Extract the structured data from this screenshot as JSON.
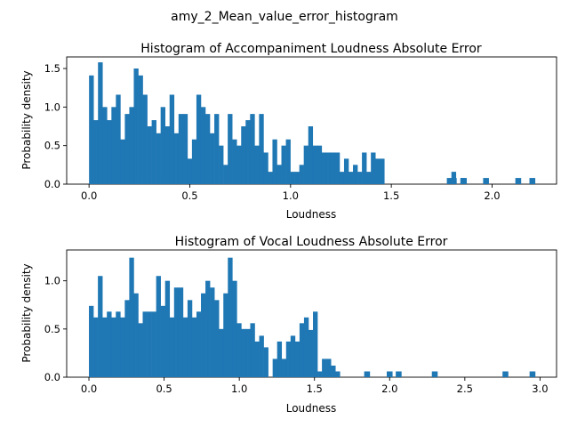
{
  "suptitle": "amy_2_Mean_value_error_histogram",
  "chart_data": [
    {
      "type": "bar",
      "title": "Histogram of Accompaniment Loudness Absolute Error",
      "xlabel": "Loudness",
      "ylabel": "Probability density",
      "xlim": [
        -0.111,
        2.32
      ],
      "ylim": [
        0,
        1.65
      ],
      "xticks": [
        {
          "v": 0.0,
          "label": "0.0"
        },
        {
          "v": 0.5,
          "label": "0.5"
        },
        {
          "v": 1.0,
          "label": "1.0"
        },
        {
          "v": 1.5,
          "label": "1.5"
        },
        {
          "v": 2.0,
          "label": "2.0"
        }
      ],
      "yticks": [
        {
          "v": 0.0,
          "label": "0.0"
        },
        {
          "v": 0.5,
          "label": "0.5"
        },
        {
          "v": 1.0,
          "label": "1.0"
        },
        {
          "v": 1.5,
          "label": "1.5"
        }
      ],
      "color": "#1f77b4",
      "bin_start": 0.0,
      "bin_width": 0.0222,
      "values": [
        1.41,
        0.83,
        1.58,
        1.0,
        0.83,
        1.0,
        1.16,
        0.58,
        0.91,
        1.0,
        1.5,
        1.41,
        1.16,
        0.75,
        0.83,
        0.66,
        1.0,
        0.75,
        1.16,
        0.66,
        0.91,
        0.91,
        0.33,
        0.58,
        1.16,
        1.0,
        0.91,
        0.66,
        0.91,
        0.5,
        0.25,
        0.91,
        0.58,
        0.5,
        0.75,
        0.83,
        0.91,
        0.5,
        0.91,
        0.41,
        0.16,
        0.58,
        0.25,
        0.5,
        0.58,
        0.16,
        0.16,
        0.25,
        0.5,
        0.75,
        0.5,
        0.5,
        0.41,
        0.41,
        0.41,
        0.41,
        0.16,
        0.33,
        0.16,
        0.25,
        0.16,
        0.41,
        0.16,
        0.41,
        0.33,
        0.33,
        0.0,
        0.0,
        0.0,
        0.0,
        0.0,
        0.0,
        0.0,
        0.0,
        0.0,
        0.0,
        0.0,
        0.0,
        0.0,
        0.0,
        0.0,
        0.16,
        0.0,
        0.08,
        0.0,
        0.0,
        0.0,
        0.0,
        0.0,
        0.0,
        0.0,
        0.0,
        0.0,
        0.0,
        0.0,
        0.0,
        0.0,
        0.0,
        0.0,
        0.0,
        0.0,
        0.0,
        0.0,
        0.0,
        0.0,
        0.0,
        0.0,
        0.0,
        0.0,
        0.0,
        0.0,
        0.0,
        0.0,
        0.0,
        0.0,
        0.0,
        0.0,
        0.0,
        0.0,
        0.0,
        0.0,
        0.0,
        0.0,
        0.0,
        0.0,
        0.0,
        0.0,
        0.0,
        0.0,
        0.0,
        0.0,
        0.0,
        0.0,
        0.0,
        0.0,
        0.0,
        0.0,
        0.0,
        0.0,
        0.0,
        0.0,
        0.0,
        0.0,
        0.0,
        0.0,
        0.0,
        0.0,
        0.0,
        0.0,
        0.0,
        0.0,
        0.0,
        0.0,
        0.0,
        0.0,
        0.0,
        0.0,
        0.0,
        0.0,
        0.0,
        0.0,
        0.0,
        0.0,
        0.0,
        0.0,
        0.0,
        0.0,
        0.0,
        0.0,
        0.0,
        0.0,
        0.0,
        0.0,
        0.0,
        0.0,
        0.0,
        0.0,
        0.0,
        0.0,
        0.0,
        0.0,
        0.0,
        0.0,
        0.0,
        0.0,
        0.0,
        0.0,
        0.0,
        0.0,
        0.0,
        0.0,
        0.0,
        0.0,
        0.0,
        0.0,
        0.0,
        0.0,
        0.0,
        0.0,
        0.0,
        0.0,
        0.0,
        0.0,
        0.0,
        0.0
      ],
      "sparse_bars": [
        {
          "x": 1.79,
          "y": 0.08
        },
        {
          "x": 1.81,
          "y": 0.08
        },
        {
          "x": 1.86,
          "y": 0.08
        },
        {
          "x": 1.97,
          "y": 0.08
        },
        {
          "x": 2.13,
          "y": 0.08
        },
        {
          "x": 2.2,
          "y": 0.08
        }
      ]
    },
    {
      "type": "bar",
      "title": "Histogram of Vocal Loudness Absolute Error",
      "xlabel": "Loudness",
      "ylabel": "Probability density",
      "xlim": [
        -0.148,
        3.11
      ],
      "ylim": [
        0,
        1.32
      ],
      "xticks": [
        {
          "v": 0.0,
          "label": "0.0"
        },
        {
          "v": 0.5,
          "label": "0.5"
        },
        {
          "v": 1.0,
          "label": "1.0"
        },
        {
          "v": 1.5,
          "label": "1.5"
        },
        {
          "v": 2.0,
          "label": "2.0"
        },
        {
          "v": 2.5,
          "label": "2.5"
        },
        {
          "v": 3.0,
          "label": "3.0"
        }
      ],
      "yticks": [
        {
          "v": 0.0,
          "label": "0.0"
        },
        {
          "v": 0.5,
          "label": "0.5"
        },
        {
          "v": 1.0,
          "label": "1.0"
        }
      ],
      "color": "#1f77b4",
      "bin_start": 0.0,
      "bin_width": 0.0298,
      "values": [
        0.74,
        0.62,
        1.05,
        0.62,
        0.68,
        0.62,
        0.68,
        0.62,
        0.8,
        1.24,
        0.87,
        0.56,
        0.68,
        0.68,
        0.68,
        1.05,
        0.74,
        1.0,
        0.62,
        0.93,
        0.93,
        0.62,
        0.8,
        0.62,
        0.68,
        0.87,
        1.0,
        0.93,
        0.8,
        0.5,
        0.87,
        1.24,
        1.0,
        0.56,
        0.5,
        0.5,
        0.56,
        0.37,
        0.43,
        0.31,
        0.0,
        0.19,
        0.37,
        0.19,
        0.37,
        0.43,
        0.37,
        0.56,
        0.62,
        0.49,
        0.68,
        0.06,
        0.19,
        0.19,
        0.12,
        0.06,
        0.0,
        0.0,
        0.0,
        0.0,
        0.0,
        0.0,
        0.0,
        0.0,
        0.0,
        0.0,
        0.0,
        0.0,
        0.0,
        0.0,
        0.0,
        0.0,
        0.0,
        0.0,
        0.0,
        0.0,
        0.0,
        0.0,
        0.0,
        0.0,
        0.0,
        0.0,
        0.0,
        0.0,
        0.0,
        0.0,
        0.0,
        0.0,
        0.0,
        0.0,
        0.0,
        0.0,
        0.0,
        0.0,
        0.0,
        0.0,
        0.0,
        0.0,
        0.0,
        0.0
      ],
      "sparse_bars": [
        {
          "x": 1.85,
          "y": 0.06
        },
        {
          "x": 2.0,
          "y": 0.06
        },
        {
          "x": 2.06,
          "y": 0.06
        },
        {
          "x": 2.3,
          "y": 0.06
        },
        {
          "x": 2.77,
          "y": 0.06
        },
        {
          "x": 2.95,
          "y": 0.06
        }
      ]
    }
  ]
}
